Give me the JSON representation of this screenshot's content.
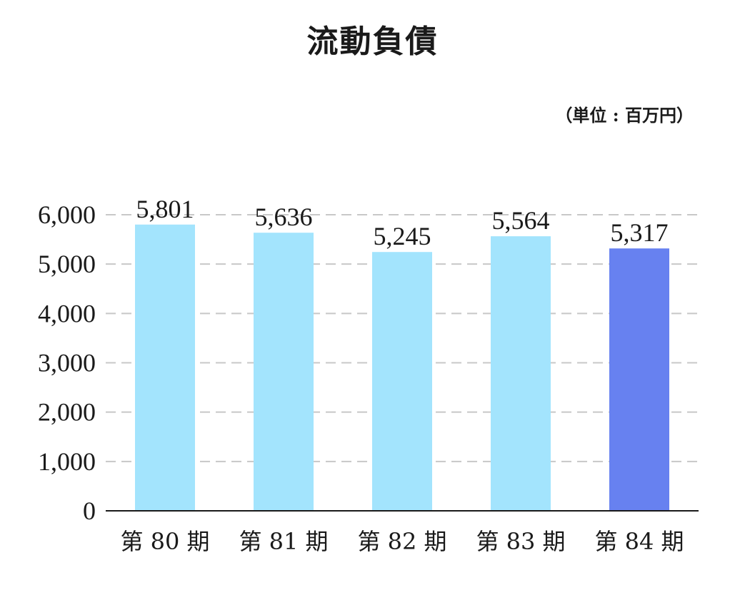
{
  "chart_data": {
    "type": "bar",
    "title": "流動負債",
    "unit_note": "（単位 : 百万円）",
    "categories": [
      "第 80 期",
      "第 81 期",
      "第 82 期",
      "第 83 期",
      "第 84 期"
    ],
    "values": [
      5801,
      5636,
      5245,
      5564,
      5317
    ],
    "value_labels": [
      "5,801",
      "5,636",
      "5,245",
      "5,564",
      "5,317"
    ],
    "ylim": [
      0,
      6000
    ],
    "yticks": [
      0,
      1000,
      2000,
      3000,
      4000,
      5000,
      6000
    ],
    "ytick_labels": [
      "0",
      "1,000",
      "2,000",
      "3,000",
      "4,000",
      "5,000",
      "6,000"
    ],
    "grid": true,
    "colors": {
      "default_bar": "#a3e4fd",
      "highlight_bar": "#6781f0",
      "grid": "#c8c8c8",
      "axis": "#1a1a1a"
    },
    "highlight_index": 4
  }
}
